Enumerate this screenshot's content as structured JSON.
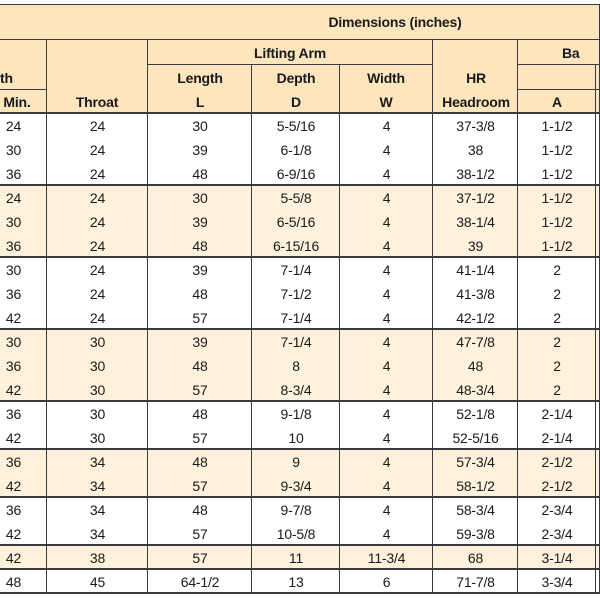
{
  "header": {
    "title": "Dimensions (inches)",
    "width_fragment": "th",
    "min": "Min.",
    "throat": "Throat",
    "lifting_arm": "Lifting Arm",
    "length": "Length",
    "length_symbol": "L",
    "depth": "Depth",
    "depth_symbol": "D",
    "width": "Width",
    "width_symbol": "W",
    "hr": "HR",
    "headroom": "Headroom",
    "ba_fragment": "Ba",
    "a": "A"
  },
  "groups": [
    [
      [
        "24",
        "24",
        "30",
        "5-5/16",
        "4",
        "37-3/8",
        "1-1/2"
      ],
      [
        "30",
        "24",
        "39",
        "6-1/8",
        "4",
        "38",
        "1-1/2"
      ],
      [
        "36",
        "24",
        "48",
        "6-9/16",
        "4",
        "38-1/2",
        "1-1/2"
      ]
    ],
    [
      [
        "24",
        "24",
        "30",
        "5-5/8",
        "4",
        "37-1/2",
        "1-1/2"
      ],
      [
        "30",
        "24",
        "39",
        "6-5/16",
        "4",
        "38-1/4",
        "1-1/2"
      ],
      [
        "36",
        "24",
        "48",
        "6-15/16",
        "4",
        "39",
        "1-1/2"
      ]
    ],
    [
      [
        "30",
        "24",
        "39",
        "7-1/4",
        "4",
        "41-1/4",
        "2"
      ],
      [
        "36",
        "24",
        "48",
        "7-1/2",
        "4",
        "41-3/8",
        "2"
      ],
      [
        "42",
        "24",
        "57",
        "7-1/4",
        "4",
        "42-1/2",
        "2"
      ]
    ],
    [
      [
        "30",
        "30",
        "39",
        "7-1/4",
        "4",
        "47-7/8",
        "2"
      ],
      [
        "36",
        "30",
        "48",
        "8",
        "4",
        "48",
        "2"
      ],
      [
        "42",
        "30",
        "57",
        "8-3/4",
        "4",
        "48-3/4",
        "2"
      ]
    ],
    [
      [
        "36",
        "30",
        "48",
        "9-1/8",
        "4",
        "52-1/8",
        "2-1/4"
      ],
      [
        "42",
        "30",
        "57",
        "10",
        "4",
        "52-5/16",
        "2-1/4"
      ]
    ],
    [
      [
        "36",
        "34",
        "48",
        "9",
        "4",
        "57-3/4",
        "2-1/2"
      ],
      [
        "42",
        "34",
        "57",
        "9-3/4",
        "4",
        "58-1/2",
        "2-1/2"
      ]
    ],
    [
      [
        "36",
        "34",
        "48",
        "9-7/8",
        "4",
        "58-3/4",
        "2-3/4"
      ],
      [
        "42",
        "34",
        "57",
        "10-5/8",
        "4",
        "59-3/8",
        "2-3/4"
      ]
    ],
    [
      [
        "42",
        "38",
        "57",
        "11",
        "11-3/4",
        "68",
        "3-1/4"
      ]
    ],
    [
      [
        "48",
        "45",
        "64-1/2",
        "13",
        "6",
        "71-7/8",
        "3-3/4"
      ]
    ]
  ]
}
